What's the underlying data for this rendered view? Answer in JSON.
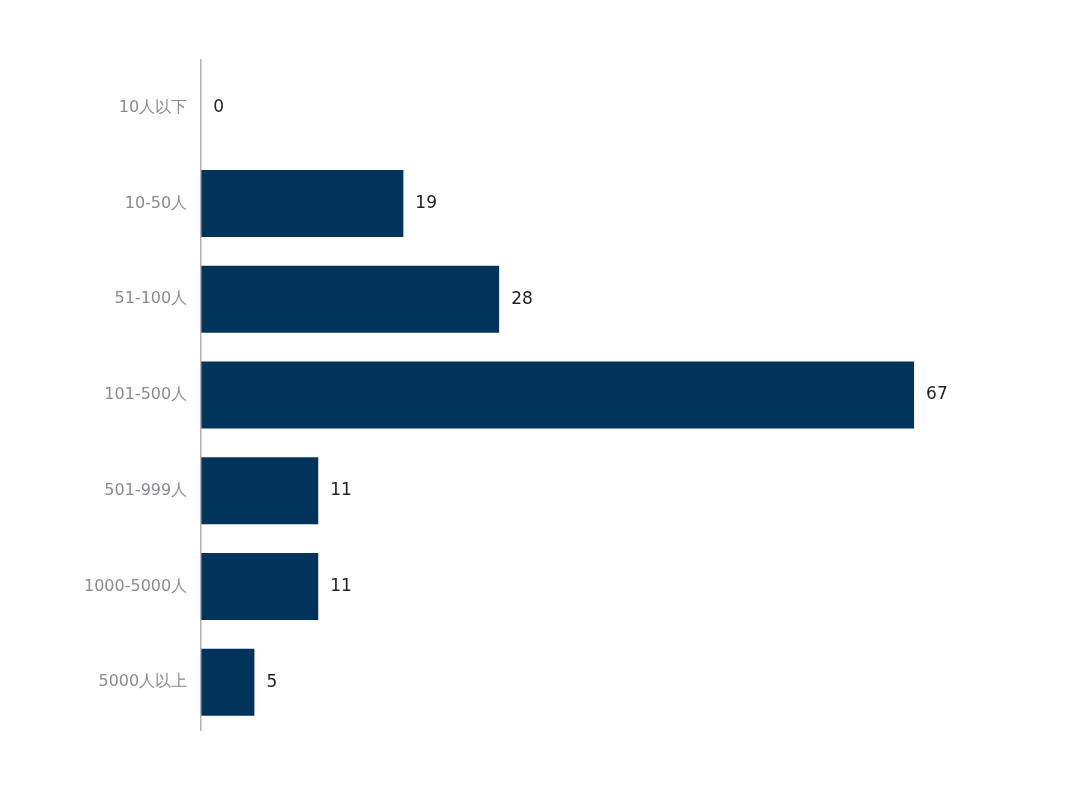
{
  "chart_data": {
    "type": "bar",
    "orientation": "horizontal",
    "categories": [
      "10人以下",
      "10-50人",
      "51-100人",
      "101-500人",
      "501-999人",
      "1000-5000人",
      "5000人以上"
    ],
    "values": [
      0,
      19,
      28,
      67,
      11,
      11,
      5
    ],
    "color": "#00345a",
    "data_labels": true,
    "legend": false,
    "tick_labels": "y"
  }
}
